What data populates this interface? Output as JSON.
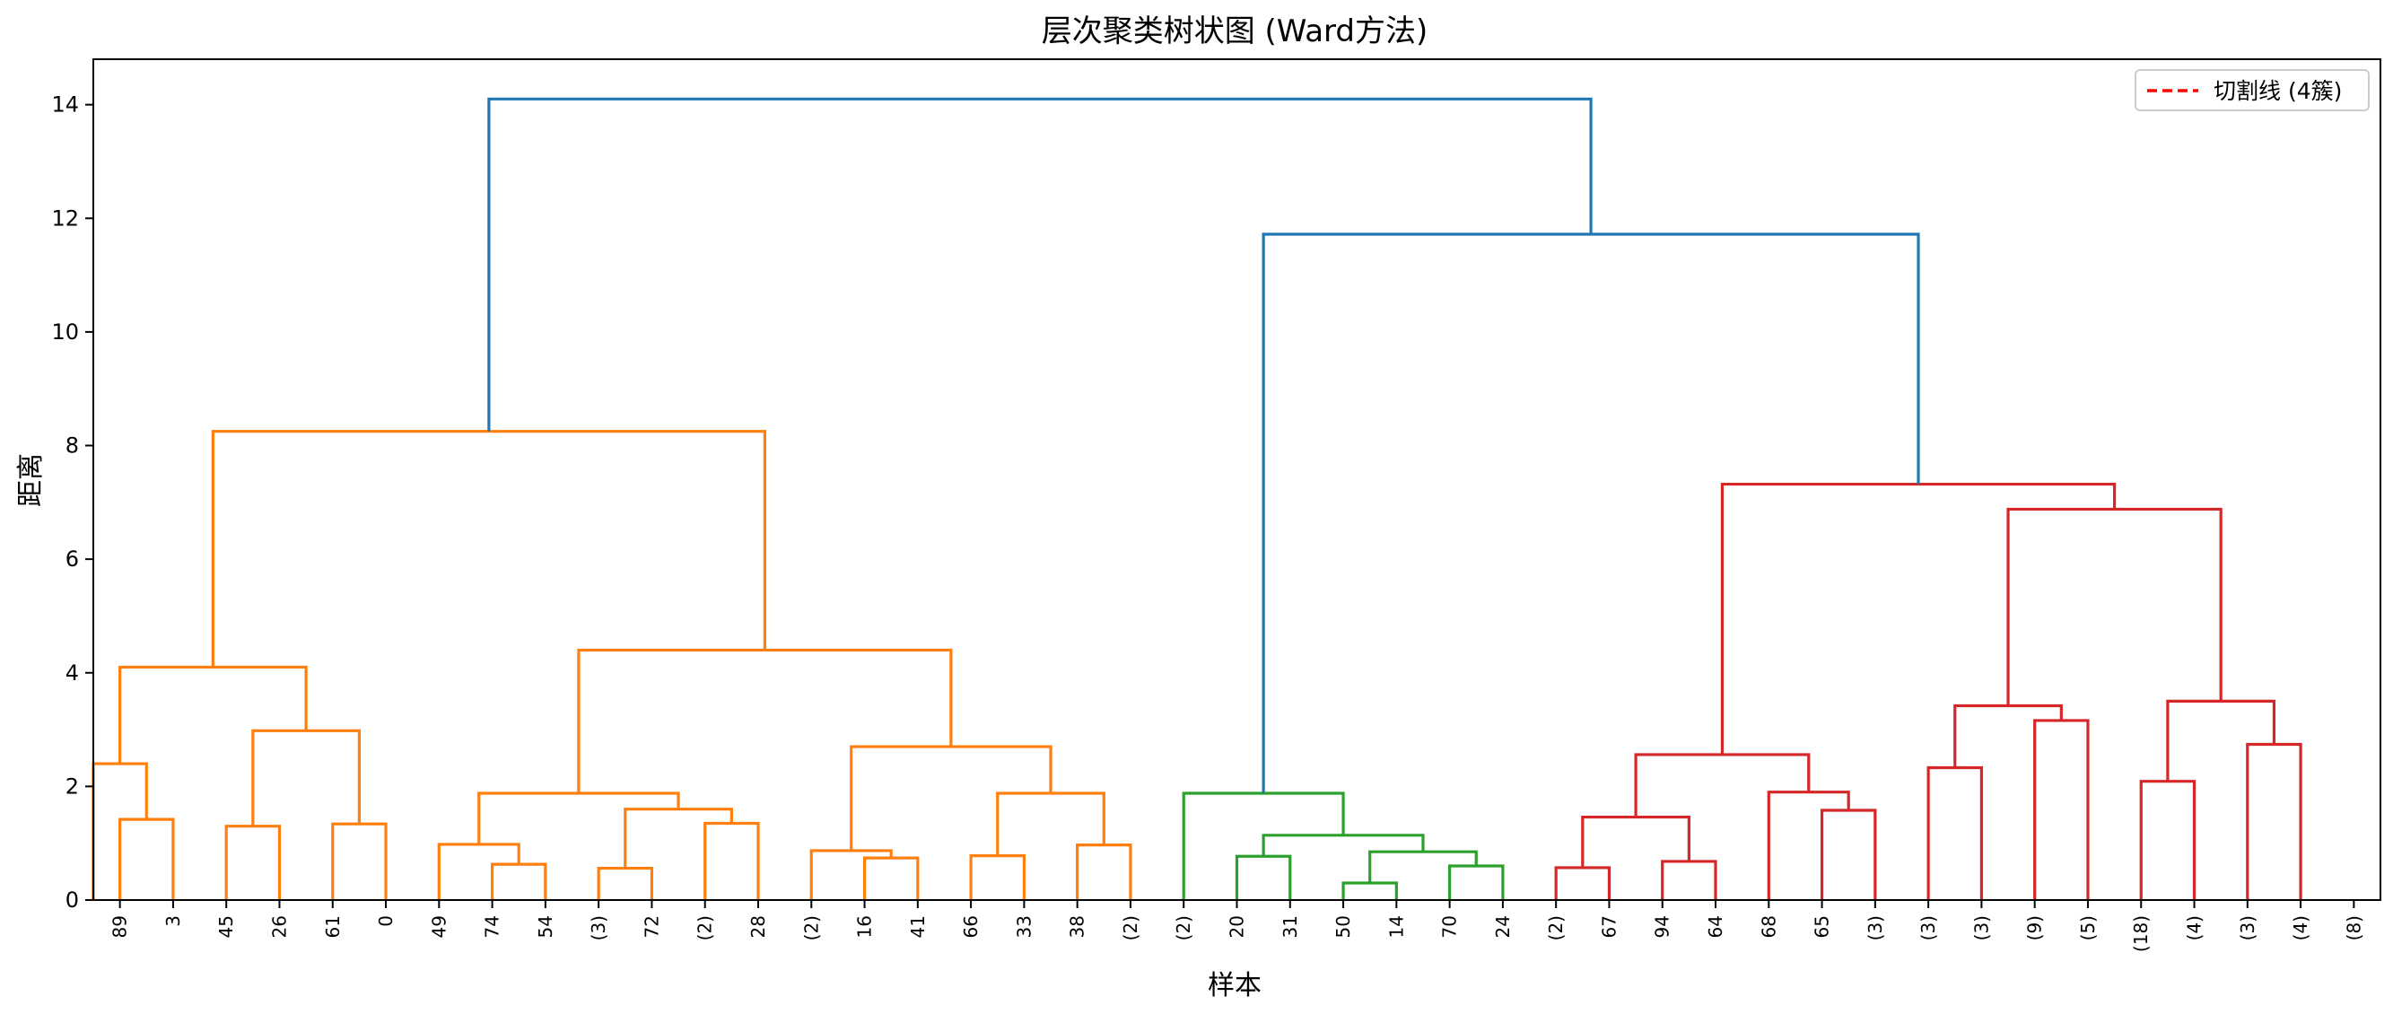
{
  "chart_data": {
    "type": "dendrogram",
    "title": "层次聚类树状图 (Ward方法)",
    "xlabel": "样本",
    "ylabel": "距离",
    "ylim": [
      0,
      14.8
    ],
    "yticks": [
      0,
      2,
      4,
      6,
      8,
      10,
      12,
      14
    ],
    "grid": false,
    "legend": {
      "position": "top-right",
      "entries": [
        {
          "label": "切割线 (4簇)",
          "color": "#ff0000",
          "style": "dashed"
        }
      ]
    },
    "leaves": [
      "89",
      "3",
      "45",
      "26",
      "61",
      "0",
      "49",
      "74",
      "54",
      "(3)",
      "72",
      "(2)",
      "28",
      "(2)",
      "16",
      "41",
      "66",
      "33",
      "38",
      "(2)",
      "(2)",
      "20",
      "31",
      "50",
      "14",
      "70",
      "24",
      "(2)",
      "67",
      "94",
      "64",
      "68",
      "65",
      "(3)",
      "(3)",
      "(3)",
      "(9)",
      "(5)",
      "(18)",
      "(4)",
      "(3)",
      "(4)",
      "(8)"
    ],
    "colors": {
      "orange": "#ff7f0e",
      "green": "#2ca02c",
      "red": "#d62728",
      "blue": "#1f77b4"
    },
    "links": [
      {
        "xs": [
          5,
          5,
          15,
          15
        ],
        "ys": [
          0,
          1.42,
          1.42,
          0
        ],
        "c": "orange"
      },
      {
        "xs": [
          0,
          0,
          10,
          10
        ],
        "ys": [
          0,
          2.4,
          2.4,
          1.42
        ],
        "c": "orange"
      },
      {
        "xs": [
          25,
          25,
          35,
          35
        ],
        "ys": [
          0,
          1.3,
          1.3,
          0
        ],
        "c": "orange"
      },
      {
        "xs": [
          45,
          45,
          55,
          55
        ],
        "ys": [
          0,
          1.34,
          1.34,
          0
        ],
        "c": "orange"
      },
      {
        "xs": [
          30,
          30,
          50,
          50
        ],
        "ys": [
          1.3,
          2.98,
          2.98,
          1.34
        ],
        "c": "orange"
      },
      {
        "xs": [
          5,
          5,
          40,
          40
        ],
        "ys": [
          2.4,
          4.1,
          4.1,
          2.98
        ],
        "c": "orange"
      },
      {
        "xs": [
          75,
          75,
          85,
          85
        ],
        "ys": [
          0,
          0.63,
          0.63,
          0
        ],
        "c": "orange"
      },
      {
        "xs": [
          65,
          65,
          80,
          80
        ],
        "ys": [
          0,
          0.98,
          0.98,
          0.63
        ],
        "c": "orange"
      },
      {
        "xs": [
          95,
          95,
          105,
          105
        ],
        "ys": [
          0,
          0.56,
          0.56,
          0
        ],
        "c": "orange"
      },
      {
        "xs": [
          115,
          115,
          125,
          125
        ],
        "ys": [
          0,
          1.35,
          1.35,
          0
        ],
        "c": "orange"
      },
      {
        "xs": [
          100,
          100,
          120,
          120
        ],
        "ys": [
          0.56,
          1.6,
          1.6,
          1.35
        ],
        "c": "orange"
      },
      {
        "xs": [
          72.5,
          72.5,
          110,
          110
        ],
        "ys": [
          0.98,
          1.88,
          1.88,
          1.6
        ],
        "c": "orange"
      },
      {
        "xs": [
          145,
          145,
          155,
          155
        ],
        "ys": [
          0,
          0.74,
          0.74,
          0
        ],
        "c": "orange"
      },
      {
        "xs": [
          135,
          135,
          150,
          150
        ],
        "ys": [
          0,
          0.87,
          0.87,
          0.74
        ],
        "c": "orange"
      },
      {
        "xs": [
          165,
          165,
          175,
          175
        ],
        "ys": [
          0,
          0.78,
          0.78,
          0
        ],
        "c": "orange"
      },
      {
        "xs": [
          185,
          185,
          195,
          195
        ],
        "ys": [
          0,
          0.97,
          0.97,
          0
        ],
        "c": "orange"
      },
      {
        "xs": [
          170,
          170,
          190,
          190
        ],
        "ys": [
          0.78,
          1.88,
          1.88,
          0.97
        ],
        "c": "orange"
      },
      {
        "xs": [
          142.5,
          142.5,
          180,
          180
        ],
        "ys": [
          0.87,
          2.7,
          2.7,
          1.88
        ],
        "c": "orange"
      },
      {
        "xs": [
          91.25,
          91.25,
          161.25,
          161.25
        ],
        "ys": [
          1.88,
          4.4,
          4.4,
          2.7
        ],
        "c": "orange"
      },
      {
        "xs": [
          22.5,
          22.5,
          126.25,
          126.25
        ],
        "ys": [
          4.1,
          8.25,
          8.25,
          4.4
        ],
        "c": "orange"
      },
      {
        "xs": [
          215,
          215,
          225,
          225
        ],
        "ys": [
          0,
          0.77,
          0.77,
          0
        ],
        "c": "green"
      },
      {
        "xs": [
          235,
          235,
          245,
          245
        ],
        "ys": [
          0,
          0.3,
          0.3,
          0
        ],
        "c": "green"
      },
      {
        "xs": [
          255,
          255,
          265,
          265
        ],
        "ys": [
          0,
          0.6,
          0.6,
          0
        ],
        "c": "green"
      },
      {
        "xs": [
          240,
          240,
          260,
          260
        ],
        "ys": [
          0.3,
          0.85,
          0.85,
          0.6
        ],
        "c": "green"
      },
      {
        "xs": [
          220,
          220,
          250,
          250
        ],
        "ys": [
          0.77,
          1.14,
          1.14,
          0.85
        ],
        "c": "green"
      },
      {
        "xs": [
          205,
          205,
          235,
          235
        ],
        "ys": [
          0,
          1.88,
          1.88,
          1.14
        ],
        "c": "green"
      },
      {
        "xs": [
          275,
          275,
          285,
          285
        ],
        "ys": [
          0,
          0.57,
          0.57,
          0
        ],
        "c": "red"
      },
      {
        "xs": [
          295,
          295,
          305,
          305
        ],
        "ys": [
          0,
          0.68,
          0.68,
          0
        ],
        "c": "red"
      },
      {
        "xs": [
          280,
          280,
          300,
          300
        ],
        "ys": [
          0.57,
          1.46,
          1.46,
          0.68
        ],
        "c": "red"
      },
      {
        "xs": [
          325,
          325,
          335,
          335
        ],
        "ys": [
          0,
          1.58,
          1.58,
          0
        ],
        "c": "red"
      },
      {
        "xs": [
          315,
          315,
          330,
          330
        ],
        "ys": [
          0,
          1.9,
          1.9,
          1.58
        ],
        "c": "red"
      },
      {
        "xs": [
          290,
          290,
          322.5,
          322.5
        ],
        "ys": [
          1.46,
          2.56,
          2.56,
          1.9
        ],
        "c": "red"
      },
      {
        "xs": [
          345,
          345,
          355,
          355
        ],
        "ys": [
          0,
          2.33,
          2.33,
          0
        ],
        "c": "red"
      },
      {
        "xs": [
          365,
          365,
          375,
          375
        ],
        "ys": [
          0,
          3.16,
          3.16,
          0
        ],
        "c": "red"
      },
      {
        "xs": [
          350,
          350,
          370,
          370
        ],
        "ys": [
          2.33,
          3.42,
          3.42,
          3.16
        ],
        "c": "red"
      },
      {
        "xs": [
          385,
          385,
          395,
          395
        ],
        "ys": [
          0,
          2.09,
          2.09,
          0
        ],
        "c": "red"
      },
      {
        "xs": [
          405,
          405,
          415,
          415
        ],
        "ys": [
          0,
          2.74,
          2.74,
          0
        ],
        "c": "red"
      },
      {
        "xs": [
          390,
          390,
          410,
          410
        ],
        "ys": [
          2.09,
          3.5,
          3.5,
          2.74
        ],
        "c": "red"
      },
      {
        "xs": [
          360,
          360,
          400,
          400
        ],
        "ys": [
          3.42,
          6.88,
          6.88,
          3.5
        ],
        "c": "red"
      },
      {
        "xs": [
          306.25,
          306.25,
          380,
          380
        ],
        "ys": [
          2.56,
          7.32,
          7.32,
          6.88
        ],
        "c": "red"
      },
      {
        "xs": [
          220,
          220,
          343.125,
          343.125
        ],
        "ys": [
          1.88,
          11.72,
          11.72,
          7.32
        ],
        "c": "blue"
      },
      {
        "xs": [
          74.375,
          74.375,
          281.5625,
          281.5625
        ],
        "ys": [
          8.25,
          14.1,
          14.1,
          11.72
        ],
        "c": "blue"
      }
    ]
  }
}
